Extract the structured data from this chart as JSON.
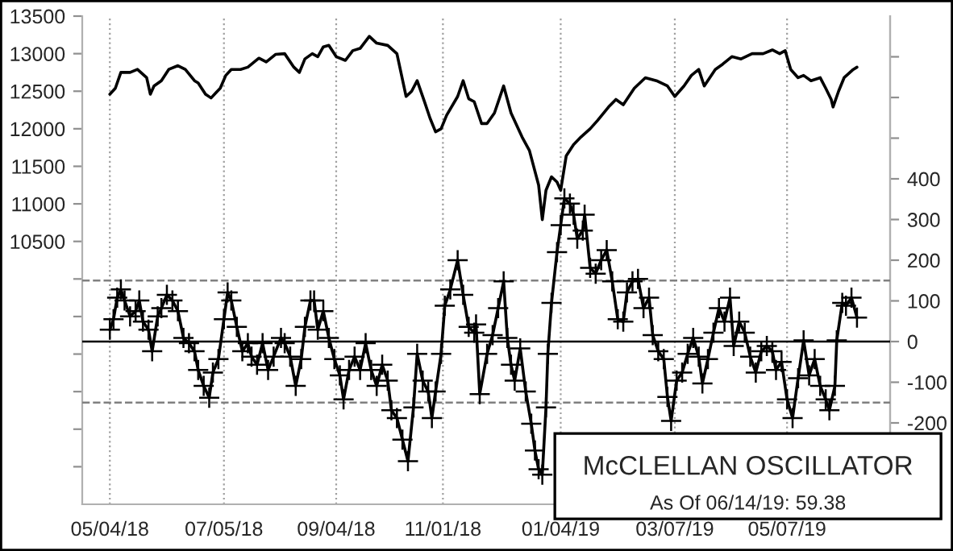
{
  "chart_data": {
    "type": "line",
    "annotations": [
      "McCLELLAN OSCILLATOR",
      "As Of 06/14/19: 59.38"
    ],
    "series": [
      {
        "type": "line",
        "axis": "y",
        "color": "#000000",
        "marker": "none",
        "x": [
          "2018-05-04",
          "2018-05-07",
          "2018-05-10",
          "2018-05-15",
          "2018-05-19",
          "2018-05-24",
          "2018-05-26",
          "2018-05-28",
          "2018-06-01",
          "2018-06-05",
          "2018-06-10",
          "2018-06-14",
          "2018-06-19",
          "2018-06-21",
          "2018-06-25",
          "2018-06-28",
          "2018-07-01",
          "2018-07-03",
          "2018-07-06",
          "2018-07-09",
          "2018-07-14",
          "2018-07-18",
          "2018-07-24",
          "2018-07-28",
          "2018-08-02",
          "2018-08-07",
          "2018-08-12",
          "2018-08-15",
          "2018-08-18",
          "2018-08-22",
          "2018-08-25",
          "2018-08-28",
          "2018-08-31",
          "2018-09-04",
          "2018-09-09",
          "2018-09-13",
          "2018-09-17",
          "2018-09-22",
          "2018-09-26",
          "2018-10-02",
          "2018-10-07",
          "2018-10-12",
          "2018-10-15",
          "2018-10-18",
          "2018-10-22",
          "2018-10-25",
          "2018-10-28",
          "2018-10-31",
          "2018-11-03",
          "2018-11-09",
          "2018-11-12",
          "2018-11-15",
          "2018-11-18",
          "2018-11-22",
          "2018-11-25",
          "2018-11-29",
          "2018-12-04",
          "2018-12-08",
          "2018-12-14",
          "2018-12-18",
          "2018-12-23",
          "2018-12-25",
          "2018-12-27",
          "2018-12-30",
          "2019-01-02",
          "2019-01-04",
          "2019-01-07",
          "2019-01-11",
          "2019-01-15",
          "2019-01-20",
          "2019-01-24",
          "2019-01-30",
          "2019-02-03",
          "2019-02-07",
          "2019-02-13",
          "2019-02-19",
          "2019-02-25",
          "2019-03-03",
          "2019-03-07",
          "2019-03-12",
          "2019-03-16",
          "2019-03-20",
          "2019-03-23",
          "2019-03-29",
          "2019-04-02",
          "2019-04-07",
          "2019-04-12",
          "2019-04-18",
          "2019-04-24",
          "2019-04-29",
          "2019-05-03",
          "2019-05-06",
          "2019-05-09",
          "2019-05-13",
          "2019-05-16",
          "2019-05-20",
          "2019-05-25",
          "2019-05-28",
          "2019-05-31",
          "2019-06-01",
          "2019-06-04",
          "2019-06-07",
          "2019-06-12",
          "2019-06-14"
        ],
        "values": [
          12460,
          12540,
          12750,
          12750,
          12790,
          12680,
          12460,
          12570,
          12640,
          12790,
          12840,
          12790,
          12640,
          12610,
          12460,
          12410,
          12490,
          12540,
          12710,
          12790,
          12790,
          12820,
          12940,
          12890,
          12990,
          13000,
          12820,
          12750,
          12930,
          13000,
          12960,
          13090,
          13110,
          12960,
          12910,
          13040,
          13070,
          13230,
          13140,
          13110,
          13000,
          12430,
          12500,
          12640,
          12360,
          12140,
          11960,
          12000,
          12180,
          12430,
          12640,
          12400,
          12360,
          12070,
          12070,
          12210,
          12570,
          12210,
          11890,
          11710,
          11250,
          10790,
          11180,
          11360,
          11290,
          11180,
          11640,
          11790,
          11890,
          12000,
          12110,
          12290,
          12390,
          12320,
          12540,
          12680,
          12640,
          12570,
          12430,
          12570,
          12710,
          12790,
          12570,
          12790,
          12860,
          12960,
          12930,
          13000,
          13000,
          13050,
          13000,
          13040,
          12790,
          12680,
          12710,
          12640,
          12680,
          12540,
          12390,
          12290,
          12500,
          12680,
          12790,
          12820
        ]
      },
      {
        "type": "line",
        "axis": "y2",
        "color": "#000000",
        "marker": "cross",
        "x": [
          "2018-05-04",
          "2018-05-06",
          "2018-05-08",
          "2018-05-10",
          "2018-05-12",
          "2018-05-15",
          "2018-05-18",
          "2018-05-20",
          "2018-05-22",
          "2018-05-25",
          "2018-05-27",
          "2018-05-30",
          "2018-06-01",
          "2018-06-04",
          "2018-06-07",
          "2018-06-10",
          "2018-06-13",
          "2018-06-16",
          "2018-06-19",
          "2018-06-21",
          "2018-06-24",
          "2018-06-27",
          "2018-06-29",
          "2018-07-02",
          "2018-07-05",
          "2018-07-07",
          "2018-07-09",
          "2018-07-12",
          "2018-07-15",
          "2018-07-18",
          "2018-07-20",
          "2018-07-23",
          "2018-07-26",
          "2018-07-29",
          "2018-08-01",
          "2018-08-05",
          "2018-08-07",
          "2018-08-10",
          "2018-08-13",
          "2018-08-16",
          "2018-08-18",
          "2018-08-21",
          "2018-08-23",
          "2018-08-25",
          "2018-08-28",
          "2018-08-31",
          "2018-09-03",
          "2018-09-06",
          "2018-09-08",
          "2018-09-11",
          "2018-09-14",
          "2018-09-17",
          "2018-09-20",
          "2018-09-23",
          "2018-09-26",
          "2018-09-29",
          "2018-10-02",
          "2018-10-04",
          "2018-10-07",
          "2018-10-10",
          "2018-10-13",
          "2018-10-16",
          "2018-10-18",
          "2018-10-21",
          "2018-10-24",
          "2018-10-26",
          "2018-10-28",
          "2018-10-31",
          "2018-11-02",
          "2018-11-05",
          "2018-11-09",
          "2018-11-12",
          "2018-11-15",
          "2018-11-18",
          "2018-11-19",
          "2018-11-21",
          "2018-11-25",
          "2018-11-28",
          "2018-12-01",
          "2018-12-04",
          "2018-12-06",
          "2018-12-08",
          "2018-12-10",
          "2018-12-13",
          "2018-12-16",
          "2018-12-19",
          "2018-12-21",
          "2018-12-23",
          "2018-12-25",
          "2018-12-27",
          "2018-12-28",
          "2018-12-30",
          "2019-01-02",
          "2019-01-04",
          "2019-01-06",
          "2019-01-09",
          "2019-01-11",
          "2019-01-13",
          "2019-01-16",
          "2019-01-17",
          "2019-01-20",
          "2019-01-23",
          "2019-01-26",
          "2019-01-29",
          "2019-02-01",
          "2019-02-04",
          "2019-02-07",
          "2019-02-09",
          "2019-02-12",
          "2019-02-15",
          "2019-02-18",
          "2019-02-21",
          "2019-02-23",
          "2019-02-26",
          "2019-03-01",
          "2019-03-03",
          "2019-03-05",
          "2019-03-08",
          "2019-03-11",
          "2019-03-14",
          "2019-03-17",
          "2019-03-20",
          "2019-03-22",
          "2019-03-25",
          "2019-03-28",
          "2019-03-31",
          "2019-04-03",
          "2019-04-06",
          "2019-04-08",
          "2019-04-11",
          "2019-04-14",
          "2019-04-17",
          "2019-04-20",
          "2019-04-23",
          "2019-04-26",
          "2019-04-29",
          "2019-05-01",
          "2019-05-04",
          "2019-05-07",
          "2019-05-10",
          "2019-05-13",
          "2019-05-16",
          "2019-05-19",
          "2019-05-22",
          "2019-05-25",
          "2019-05-28",
          "2019-05-30",
          "2019-06-02",
          "2019-06-03",
          "2019-06-06",
          "2019-06-08",
          "2019-06-11",
          "2019-06-14"
        ],
        "values": [
          29,
          55,
          108,
          128,
          101,
          62,
          75,
          101,
          49,
          29,
          -24,
          62,
          82,
          115,
          101,
          75,
          9,
          -4,
          -24,
          -70,
          -109,
          -138,
          -76,
          -43,
          55,
          121,
          101,
          36,
          -24,
          -4,
          -37,
          -57,
          -4,
          -70,
          -37,
          9,
          -4,
          -37,
          -109,
          -43,
          36,
          101,
          101,
          29,
          75,
          9,
          -43,
          -83,
          -142,
          -70,
          -37,
          -70,
          -4,
          -70,
          -109,
          -57,
          -96,
          -169,
          -188,
          -241,
          -294,
          -162,
          -30,
          -96,
          -123,
          -188,
          -123,
          -30,
          88,
          128,
          200,
          115,
          36,
          22,
          42,
          -129,
          -30,
          16,
          82,
          148,
          9,
          -57,
          -96,
          -17,
          -123,
          -202,
          -268,
          -314,
          -327,
          -162,
          -30,
          95,
          220,
          286,
          352,
          339,
          312,
          253,
          273,
          312,
          181,
          167,
          200,
          225,
          148,
          55,
          49,
          121,
          148,
          154,
          82,
          108,
          16,
          -24,
          -43,
          -136,
          -195,
          -96,
          -76,
          -30,
          9,
          -37,
          -103,
          -43,
          22,
          82,
          49,
          108,
          -11,
          49,
          22,
          -37,
          -76,
          -24,
          -11,
          -24,
          -70,
          -50,
          -142,
          -188,
          -90,
          3,
          -83,
          -43,
          -109,
          -142,
          -169,
          -109,
          3,
          95,
          88,
          108,
          59
        ]
      }
    ],
    "xlim": [
      "2018-04-19",
      "2019-07-02"
    ],
    "xticks": [
      {
        "value": "2018-05-04",
        "label": "05/04/18"
      },
      {
        "value": "2018-07-05",
        "label": "07/05/18"
      },
      {
        "value": "2018-09-04",
        "label": "09/04/18"
      },
      {
        "value": "2018-11-01",
        "label": "11/01/18"
      },
      {
        "value": "2019-01-04",
        "label": "01/04/19"
      },
      {
        "value": "2019-03-07",
        "label": "03/07/19"
      },
      {
        "value": "2019-05-07",
        "label": "05/07/19"
      }
    ],
    "ylim": [
      7000,
      13500
    ],
    "yticks": [
      {
        "value": 7500,
        "label": null
      },
      {
        "value": 8000,
        "label": null
      },
      {
        "value": 8500,
        "label": null
      },
      {
        "value": 9000,
        "label": null
      },
      {
        "value": 9500,
        "label": null
      },
      {
        "value": 10000,
        "label": null
      },
      10500,
      11000,
      11500,
      12000,
      12500,
      13000,
      13500
    ],
    "y2lim": [
      -400,
      800
    ],
    "y2ticks": [
      -200,
      -100,
      0,
      100,
      200,
      300,
      400,
      {
        "value": 500,
        "label": null
      },
      {
        "value": 600,
        "label": null
      },
      {
        "value": 700,
        "label": null
      }
    ],
    "ref_lines": [
      {
        "axis": "y2",
        "value": 150,
        "color": "#808080",
        "line_style": "dashed"
      },
      {
        "axis": "y2",
        "value": -150,
        "color": "#808080",
        "line_style": "dashed"
      },
      {
        "axis": "y2",
        "value": 0,
        "color": "#000000",
        "line_style": "solid"
      }
    ],
    "grid": "x",
    "line_style": "solid",
    "legend": false
  }
}
